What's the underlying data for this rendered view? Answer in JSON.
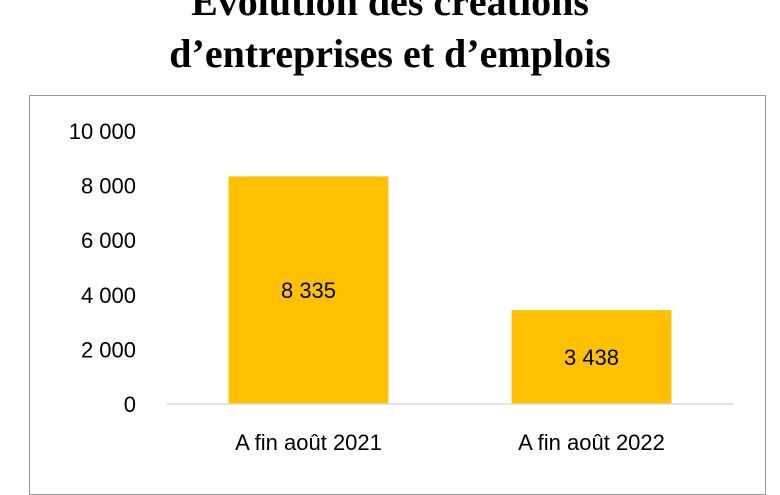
{
  "chart_data": {
    "type": "bar",
    "title_lines": [
      "Évolution des créations",
      "d’entreprises et d’emplois"
    ],
    "categories": [
      "A fin août 2021",
      "A fin août 2022"
    ],
    "values": [
      8335,
      3438
    ],
    "data_labels": [
      "8 335",
      "3 438"
    ],
    "yticks": [
      0,
      2000,
      4000,
      6000,
      8000,
      10000
    ],
    "ytick_labels": [
      "0",
      "2 000",
      "4 000",
      "6 000",
      "8 000",
      "10 000"
    ],
    "ylim": [
      0,
      10000
    ],
    "xlabel": "",
    "ylabel": "",
    "grid": false,
    "legend": "none",
    "colors": {
      "bar": "#FFC000",
      "axis": "#d9d9d9",
      "frame": "#9a9a9a",
      "text": "#000000"
    }
  }
}
